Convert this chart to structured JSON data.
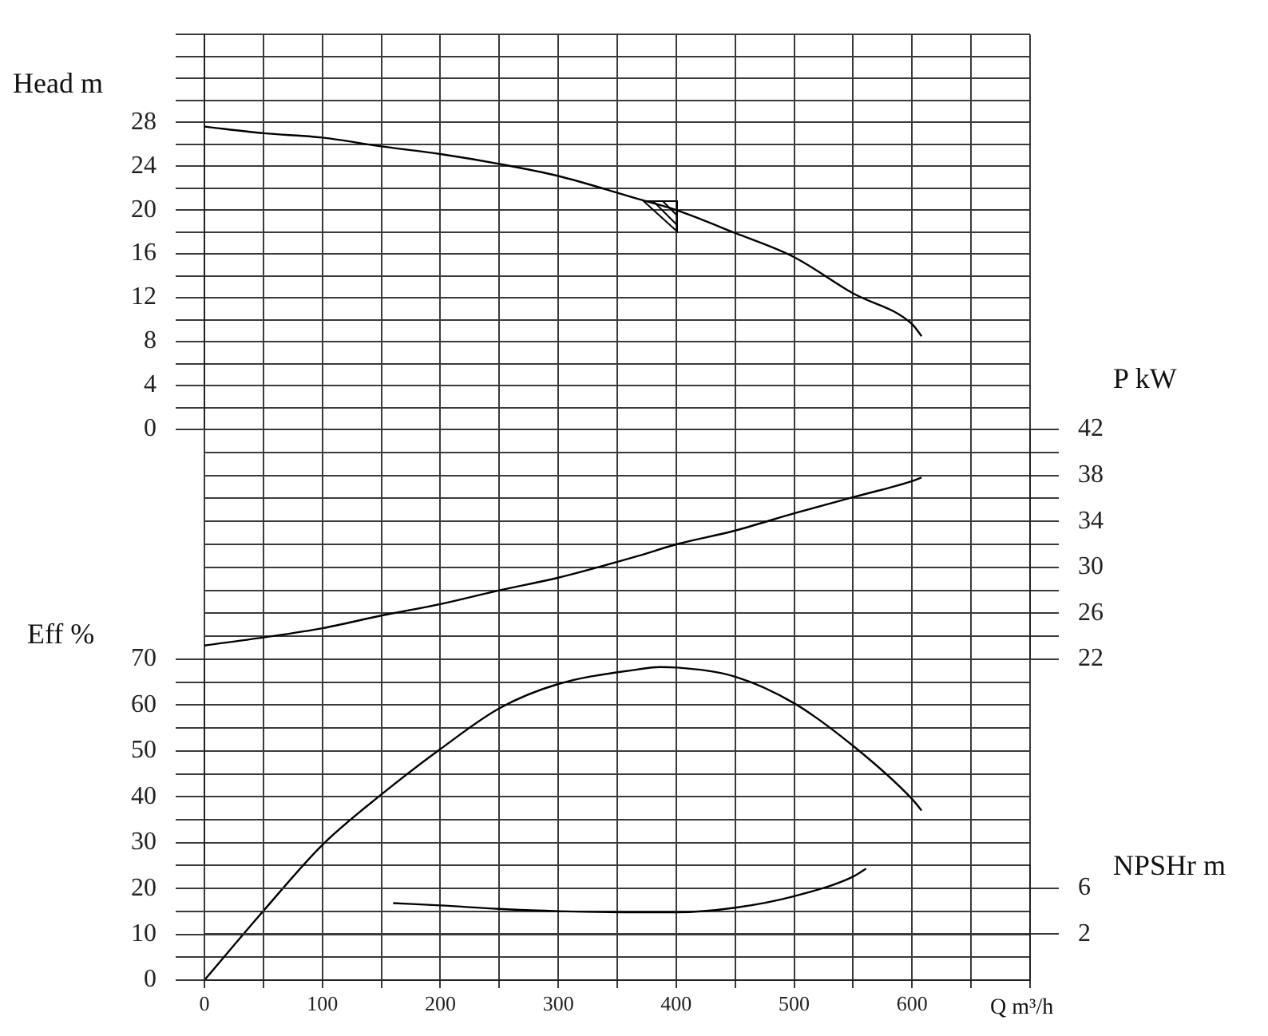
{
  "chart_data": [
    {
      "type": "line",
      "ylabel": "Head m",
      "x": [
        0,
        50,
        100,
        150,
        200,
        250,
        300,
        368,
        400,
        450,
        500,
        550,
        600,
        608
      ],
      "series": [
        {
          "color": "#000000",
          "values": [
            27.6,
            27.0,
            26.6,
            25.8,
            25.1,
            24.2,
            23.1,
            21.0,
            20.0,
            17.9,
            15.7,
            12.4,
            9.6,
            8.5
          ]
        }
      ],
      "xlim": [
        0,
        700
      ],
      "xticks": [
        {
          "value": 0,
          "label": null
        },
        {
          "value": 50,
          "label": null
        },
        {
          "value": 100,
          "label": null
        },
        {
          "value": 150,
          "label": null
        },
        {
          "value": 200,
          "label": null
        },
        {
          "value": 250,
          "label": null
        },
        {
          "value": 300,
          "label": null
        },
        {
          "value": 350,
          "label": null
        },
        {
          "value": 400,
          "label": null
        },
        {
          "value": 450,
          "label": null
        },
        {
          "value": 500,
          "label": null
        },
        {
          "value": 550,
          "label": null
        },
        {
          "value": 600,
          "label": null
        },
        {
          "value": 650,
          "label": null
        },
        {
          "value": 700,
          "label": null
        }
      ],
      "ylim": [
        0,
        36
      ],
      "yticks": [
        0,
        {
          "value": 2,
          "label": null
        },
        4,
        {
          "value": 6,
          "label": null
        },
        8,
        {
          "value": 10,
          "label": null
        },
        12,
        {
          "value": 14,
          "label": null
        },
        16,
        {
          "value": 18,
          "label": null
        },
        20,
        {
          "value": 22,
          "label": null
        },
        24,
        {
          "value": 26,
          "label": null
        },
        28,
        {
          "value": 30,
          "label": null
        },
        {
          "value": 32,
          "label": null
        },
        {
          "value": 34,
          "label": null
        },
        {
          "value": 36,
          "label": null
        }
      ],
      "grid": true,
      "marker": "none",
      "tick_labels": "y"
    },
    {
      "type": "line",
      "ylabel": "P kW",
      "x": [
        0,
        50,
        100,
        150,
        200,
        250,
        300,
        368,
        400,
        450,
        500,
        550,
        600,
        608
      ],
      "series": [
        {
          "color": "#000000",
          "values": [
            23.2,
            23.9,
            24.7,
            25.8,
            26.8,
            28.0,
            29.1,
            31.0,
            32.0,
            33.2,
            34.7,
            36.1,
            37.5,
            37.8
          ]
        }
      ],
      "xlim": [
        0,
        700
      ],
      "xticks": [
        {
          "value": 0,
          "label": null
        },
        {
          "value": 50,
          "label": null
        },
        {
          "value": 100,
          "label": null
        },
        {
          "value": 150,
          "label": null
        },
        {
          "value": 200,
          "label": null
        },
        {
          "value": 250,
          "label": null
        },
        {
          "value": 300,
          "label": null
        },
        {
          "value": 350,
          "label": null
        },
        {
          "value": 400,
          "label": null
        },
        {
          "value": 450,
          "label": null
        },
        {
          "value": 500,
          "label": null
        },
        {
          "value": 550,
          "label": null
        },
        {
          "value": 600,
          "label": null
        },
        {
          "value": 650,
          "label": null
        },
        {
          "value": 700,
          "label": null
        }
      ],
      "ylim": [
        22,
        42
      ],
      "yticks": [
        22,
        {
          "value": 24,
          "label": null
        },
        26,
        {
          "value": 28,
          "label": null
        },
        30,
        {
          "value": 32,
          "label": null
        },
        34,
        {
          "value": 36,
          "label": null
        },
        38,
        {
          "value": 40,
          "label": null
        },
        42
      ],
      "grid": true,
      "marker": "none",
      "tick_labels": "y"
    },
    {
      "type": "line",
      "ylabel": "Eff %",
      "xlabel": "Q m³/h",
      "x": [
        0,
        50,
        100,
        150,
        200,
        250,
        300,
        368,
        386,
        400,
        450,
        500,
        550,
        600,
        608
      ],
      "series": [
        {
          "color": "#000000",
          "values": [
            0,
            15.1,
            29.5,
            40.5,
            50.4,
            59.3,
            64.6,
            67.8,
            68.3,
            68.2,
            66.2,
            60.4,
            51.1,
            39.5,
            37.0
          ]
        }
      ],
      "xlim": [
        0,
        700
      ],
      "xticks": [
        0,
        {
          "value": 50,
          "label": null
        },
        100,
        {
          "value": 150,
          "label": null
        },
        200,
        {
          "value": 250,
          "label": null
        },
        300,
        {
          "value": 350,
          "label": null
        },
        400,
        {
          "value": 450,
          "label": null
        },
        500,
        {
          "value": 550,
          "label": null
        },
        600,
        {
          "value": 650,
          "label": null
        },
        {
          "value": 700,
          "label": null
        }
      ],
      "ylim": [
        0,
        70
      ],
      "yticks": [
        0,
        {
          "value": 5,
          "label": null
        },
        10,
        {
          "value": 15,
          "label": null
        },
        20,
        {
          "value": 25,
          "label": null
        },
        30,
        {
          "value": 35,
          "label": null
        },
        40,
        {
          "value": 45,
          "label": null
        },
        50,
        {
          "value": 55,
          "label": null
        },
        60,
        {
          "value": 65,
          "label": null
        },
        70
      ],
      "grid": true,
      "marker": "none"
    },
    {
      "type": "line",
      "ylabel": "NPSHr m",
      "x": [
        160,
        200,
        250,
        300,
        368,
        400,
        450,
        500,
        550,
        561
      ],
      "series": [
        {
          "color": "#000000",
          "values": [
            4.7,
            4.5,
            4.2,
            4.0,
            3.9,
            3.9,
            4.3,
            5.3,
            7.0,
            7.7
          ]
        }
      ],
      "xlim": [
        0,
        700
      ],
      "xticks": [
        {
          "value": 0,
          "label": null
        },
        {
          "value": 50,
          "label": null
        },
        {
          "value": 100,
          "label": null
        },
        {
          "value": 150,
          "label": null
        },
        {
          "value": 200,
          "label": null
        },
        {
          "value": 250,
          "label": null
        },
        {
          "value": 300,
          "label": null
        },
        {
          "value": 350,
          "label": null
        },
        {
          "value": 400,
          "label": null
        },
        {
          "value": 450,
          "label": null
        },
        {
          "value": 500,
          "label": null
        },
        {
          "value": 550,
          "label": null
        },
        {
          "value": 600,
          "label": null
        },
        {
          "value": 650,
          "label": null
        },
        {
          "value": 700,
          "label": null
        }
      ],
      "ylim": [
        -2,
        8
      ],
      "yticks": [
        2,
        6
      ],
      "grid": true,
      "marker": "none",
      "tick_labels": "y"
    }
  ]
}
